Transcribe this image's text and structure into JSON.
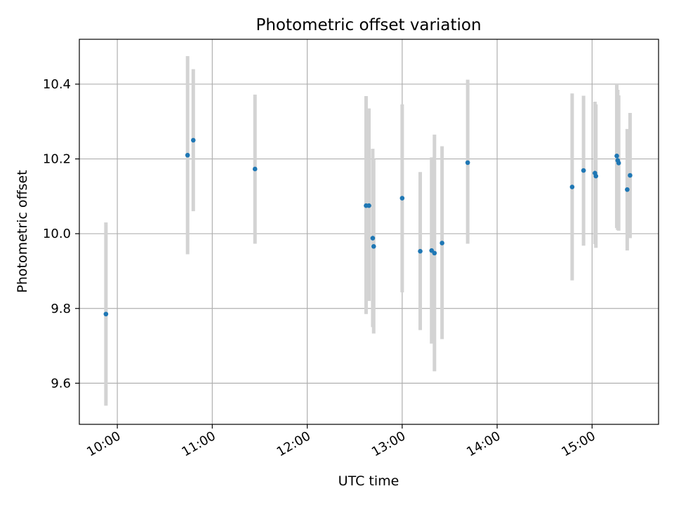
{
  "chart_data": {
    "type": "scatter",
    "title": "Photometric offset variation",
    "xlabel": "UTC time",
    "ylabel": "Photometric offset",
    "x_unit": "hours UTC",
    "xlim": [
      9.6,
      15.7
    ],
    "ylim": [
      9.49,
      10.52
    ],
    "x_ticks": [
      {
        "value": 10,
        "label": "10:00"
      },
      {
        "value": 11,
        "label": "11:00"
      },
      {
        "value": 12,
        "label": "12:00"
      },
      {
        "value": 13,
        "label": "13:00"
      },
      {
        "value": 14,
        "label": "14:00"
      },
      {
        "value": 15,
        "label": "15:00"
      }
    ],
    "y_ticks": [
      {
        "value": 9.6,
        "label": "9.6"
      },
      {
        "value": 9.8,
        "label": "9.8"
      },
      {
        "value": 10.0,
        "label": "10.0"
      },
      {
        "value": 10.2,
        "label": "10.2"
      },
      {
        "value": 10.4,
        "label": "10.4"
      }
    ],
    "grid": true,
    "marker_color": "#1f77b4",
    "errorbar_color": "#d3d3d3",
    "points": [
      {
        "x": 9.88,
        "y": 9.785,
        "ylow": 9.54,
        "yhigh": 10.03
      },
      {
        "x": 10.74,
        "y": 10.21,
        "ylow": 9.945,
        "yhigh": 10.475
      },
      {
        "x": 10.8,
        "y": 10.25,
        "ylow": 10.06,
        "yhigh": 10.44
      },
      {
        "x": 11.45,
        "y": 10.173,
        "ylow": 9.973,
        "yhigh": 10.372
      },
      {
        "x": 12.62,
        "y": 10.075,
        "ylow": 9.785,
        "yhigh": 10.368
      },
      {
        "x": 12.65,
        "y": 10.075,
        "ylow": 9.82,
        "yhigh": 10.335
      },
      {
        "x": 12.69,
        "y": 9.988,
        "ylow": 9.75,
        "yhigh": 10.227
      },
      {
        "x": 12.7,
        "y": 9.966,
        "ylow": 9.733,
        "yhigh": 10.2
      },
      {
        "x": 13.0,
        "y": 10.095,
        "ylow": 9.843,
        "yhigh": 10.346
      },
      {
        "x": 13.19,
        "y": 9.953,
        "ylow": 9.742,
        "yhigh": 10.165
      },
      {
        "x": 13.31,
        "y": 9.955,
        "ylow": 9.706,
        "yhigh": 10.204
      },
      {
        "x": 13.34,
        "y": 9.948,
        "ylow": 9.632,
        "yhigh": 10.265
      },
      {
        "x": 13.42,
        "y": 9.975,
        "ylow": 9.718,
        "yhigh": 10.234
      },
      {
        "x": 13.69,
        "y": 10.19,
        "ylow": 9.973,
        "yhigh": 10.412
      },
      {
        "x": 14.79,
        "y": 10.125,
        "ylow": 9.875,
        "yhigh": 10.375
      },
      {
        "x": 14.91,
        "y": 10.169,
        "ylow": 9.968,
        "yhigh": 10.369
      },
      {
        "x": 15.03,
        "y": 10.162,
        "ylow": 9.972,
        "yhigh": 10.353
      },
      {
        "x": 15.04,
        "y": 10.154,
        "ylow": 9.962,
        "yhigh": 10.346
      },
      {
        "x": 15.26,
        "y": 10.208,
        "ylow": 10.015,
        "yhigh": 10.402
      },
      {
        "x": 15.27,
        "y": 10.196,
        "ylow": 10.01,
        "yhigh": 10.385
      },
      {
        "x": 15.28,
        "y": 10.189,
        "ylow": 10.008,
        "yhigh": 10.37
      },
      {
        "x": 15.37,
        "y": 10.118,
        "ylow": 9.955,
        "yhigh": 10.28
      },
      {
        "x": 15.4,
        "y": 10.156,
        "ylow": 9.988,
        "yhigh": 10.323
      }
    ]
  }
}
